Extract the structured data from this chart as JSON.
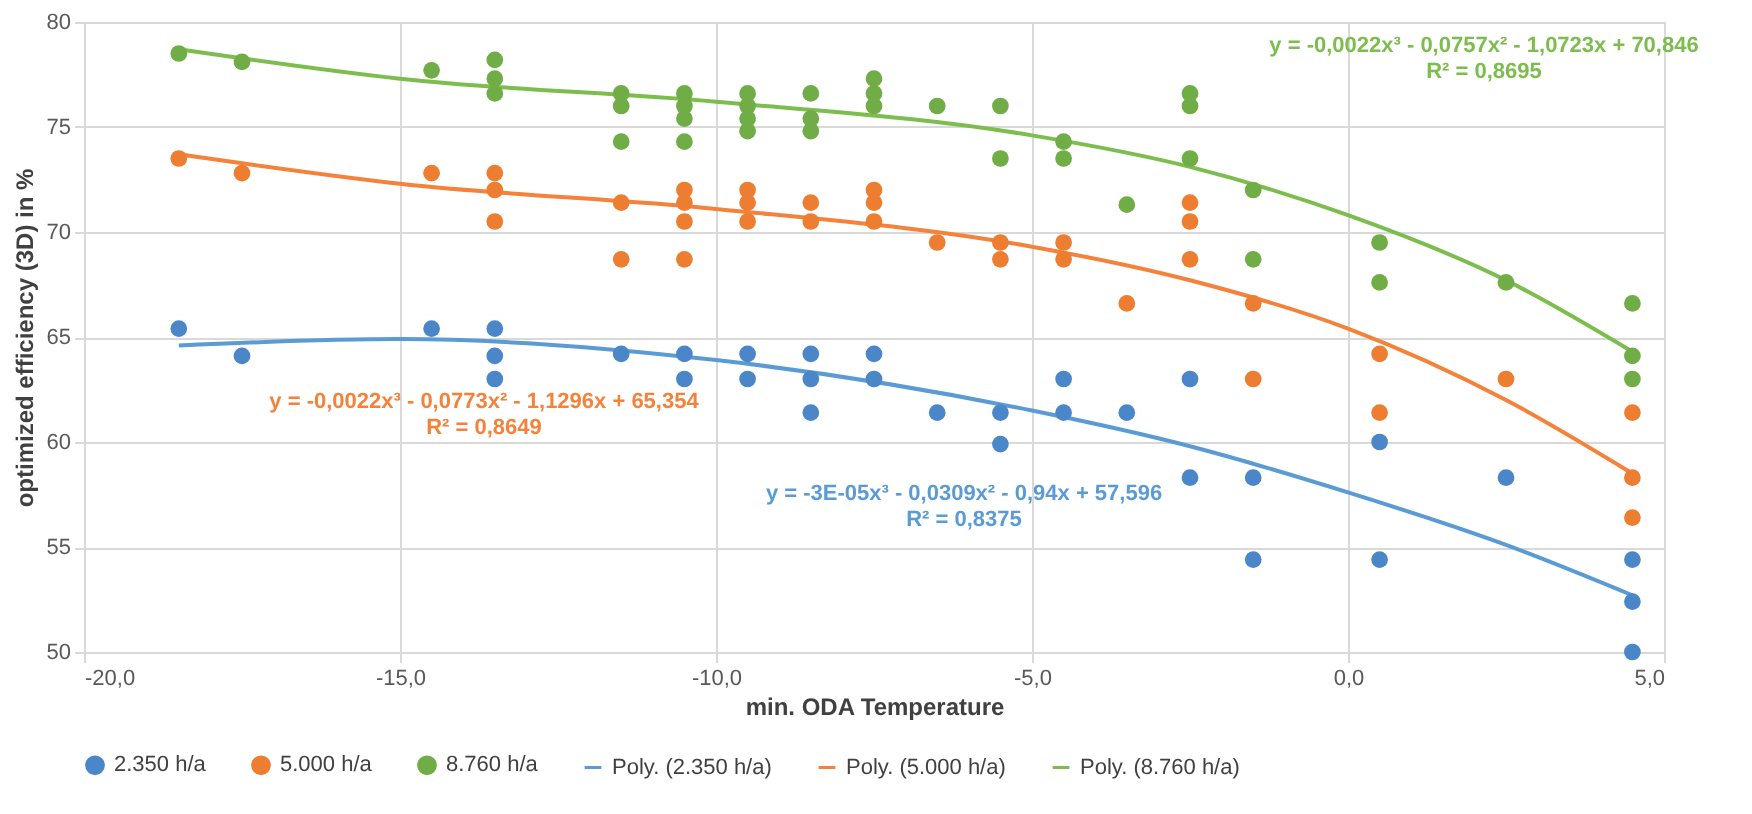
{
  "chart_data": {
    "type": "scatter",
    "xlabel": "min. ODA Temperature",
    "ylabel": "optimized efficiency (3D)  in %",
    "xlim": [
      -20,
      5
    ],
    "xticks": [
      {
        "value": -20,
        "label": "-20,0"
      },
      {
        "value": -15,
        "label": "-15,0"
      },
      {
        "value": -10,
        "label": "-10,0"
      },
      {
        "value": -5,
        "label": "-5,0"
      },
      {
        "value": 0,
        "label": "0,0"
      },
      {
        "value": 5,
        "label": "5,0"
      }
    ],
    "ylim": [
      50,
      80
    ],
    "yticks": [
      50,
      55,
      60,
      65,
      70,
      75,
      80
    ],
    "grid": true,
    "legend": "bottom",
    "marker": "circle",
    "series": [
      {
        "name": "2.350 h/a",
        "color": "#4a86c8",
        "x": [
          -18.5,
          -17.5,
          -14.5,
          -13.5,
          -13.5,
          -13.5,
          -11.5,
          -10.5,
          -10.5,
          -9.5,
          -9.5,
          -8.5,
          -8.5,
          -8.5,
          -7.5,
          -7.5,
          -6.5,
          -5.5,
          -5.5,
          -4.5,
          -4.5,
          -3.5,
          -2.5,
          -2.5,
          -1.5,
          -1.5,
          0.5,
          0.5,
          2.5,
          4.5,
          4.5,
          4.5
        ],
        "values": [
          65.4,
          64.1,
          65.4,
          65.4,
          64.1,
          63.0,
          64.2,
          64.2,
          63.0,
          64.2,
          63.0,
          64.2,
          63.0,
          61.4,
          64.2,
          63.0,
          61.4,
          61.4,
          59.9,
          63.0,
          61.4,
          61.4,
          63.0,
          58.3,
          58.3,
          54.4,
          60.0,
          54.4,
          58.3,
          54.4,
          52.4,
          50.0
        ]
      },
      {
        "name": "5.000 h/a",
        "color": "#ed7d31",
        "x": [
          -18.5,
          -17.5,
          -14.5,
          -13.5,
          -13.5,
          -13.5,
          -11.5,
          -11.5,
          -10.5,
          -10.5,
          -10.5,
          -10.5,
          -9.5,
          -9.5,
          -9.5,
          -8.5,
          -8.5,
          -7.5,
          -7.5,
          -7.5,
          -6.5,
          -5.5,
          -5.5,
          -4.5,
          -4.5,
          -3.5,
          -2.5,
          -2.5,
          -2.5,
          -1.5,
          -1.5,
          0.5,
          0.5,
          2.5,
          4.5,
          4.5,
          4.5
        ],
        "values": [
          73.5,
          72.8,
          72.8,
          72.8,
          72.0,
          70.5,
          71.4,
          68.7,
          72.0,
          71.4,
          70.5,
          68.7,
          72.0,
          71.4,
          70.5,
          71.4,
          70.5,
          72.0,
          71.4,
          70.5,
          69.5,
          69.5,
          68.7,
          69.5,
          68.7,
          66.6,
          71.4,
          70.5,
          68.7,
          66.6,
          63.0,
          64.2,
          61.4,
          63.0,
          61.4,
          58.3,
          56.4
        ]
      },
      {
        "name": "8.760 h/a",
        "color": "#70ad47",
        "x": [
          -18.5,
          -17.5,
          -14.5,
          -13.5,
          -13.5,
          -13.5,
          -11.5,
          -11.5,
          -11.5,
          -10.5,
          -10.5,
          -10.5,
          -10.5,
          -9.5,
          -9.5,
          -9.5,
          -9.5,
          -8.5,
          -8.5,
          -8.5,
          -7.5,
          -7.5,
          -7.5,
          -6.5,
          -5.5,
          -5.5,
          -4.5,
          -4.5,
          -3.5,
          -2.5,
          -2.5,
          -2.5,
          -1.5,
          -1.5,
          0.5,
          0.5,
          2.5,
          4.5,
          4.5,
          4.5
        ],
        "values": [
          78.5,
          78.1,
          77.7,
          78.2,
          77.3,
          76.6,
          76.6,
          76.0,
          74.3,
          76.6,
          76.0,
          75.4,
          74.3,
          76.6,
          76.0,
          75.4,
          74.8,
          76.6,
          75.4,
          74.8,
          77.3,
          76.6,
          76.0,
          76.0,
          76.0,
          73.5,
          74.3,
          73.5,
          71.3,
          76.6,
          76.0,
          73.5,
          72.0,
          68.7,
          69.5,
          67.6,
          67.6,
          66.6,
          64.1,
          63.0
        ]
      },
      {
        "name": "Poly. (2.350 h/a)",
        "type": "line",
        "marker": "none",
        "line_style": "solid",
        "color": "#5b9bd5",
        "x": [
          -18.5,
          -15,
          -10,
          -5,
          -2.5,
          0,
          2.5,
          4.5
        ],
        "values": [
          64.6,
          64.9,
          63.9,
          61.5,
          59.8,
          57.6,
          55.1,
          52.7
        ]
      },
      {
        "name": "Poly. (5.000 h/a)",
        "type": "line",
        "marker": "none",
        "line_style": "solid",
        "color": "#f4823a",
        "x": [
          -18.5,
          -15,
          -10,
          -5,
          -2.5,
          0,
          2.5,
          4.5
        ],
        "values": [
          73.7,
          72.3,
          71.1,
          69.3,
          67.7,
          65.4,
          62.0,
          58.5
        ]
      },
      {
        "name": "Poly. (8.760 h/a)",
        "type": "line",
        "marker": "none",
        "line_style": "solid",
        "color": "#7cbd4e",
        "x": [
          -18.5,
          -15,
          -10,
          -5,
          -2.5,
          0,
          2.5,
          4.5
        ],
        "values": [
          78.7,
          77.3,
          76.2,
          74.6,
          73.1,
          70.8,
          67.7,
          64.3
        ]
      }
    ],
    "annotations": [
      "y = -0,0022x³ - 0,0757x² - 1,0723x + 70,846",
      "R² = 0,8695",
      "y = -0,0022x³ - 0,0773x² - 1,1296x + 65,354",
      "R² = 0,8649",
      "y = -3E-05x³ - 0,0309x² - 0,94x + 57,596",
      "R² = 0,8375"
    ]
  }
}
